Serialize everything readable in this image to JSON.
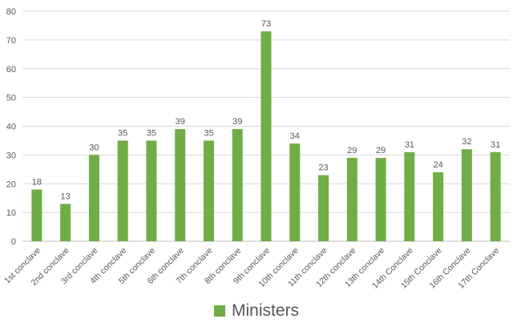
{
  "colors": {
    "series": "#70ad47",
    "grid": "#d9d9d9",
    "text": "#595959",
    "axis": "#bfbfbf"
  },
  "chart_data": {
    "type": "bar",
    "title": "",
    "xlabel": "",
    "ylabel": "",
    "ylim": [
      0,
      80
    ],
    "yticks": [
      "0",
      "10",
      "20",
      "30",
      "40",
      "50",
      "60",
      "70",
      "80"
    ],
    "grid": true,
    "legend_position": "bottom",
    "categories": [
      "1st conclave",
      "2nd conclave",
      "3rd conclave",
      "4th conclave",
      "5th conclave",
      "6th conclave",
      "7th conclave",
      "8th conclave",
      "9th conclave",
      "10th conclave",
      "11th conclave",
      "12th conclave",
      "13th conclave",
      "14th Conclave",
      "15th Conclave",
      "16th Conclave",
      "17th Conclave"
    ],
    "series": [
      {
        "name": "Ministers",
        "values": [
          18,
          13,
          30,
          35,
          35,
          39,
          35,
          39,
          73,
          34,
          23,
          29,
          29,
          31,
          24,
          32,
          31
        ]
      }
    ]
  }
}
